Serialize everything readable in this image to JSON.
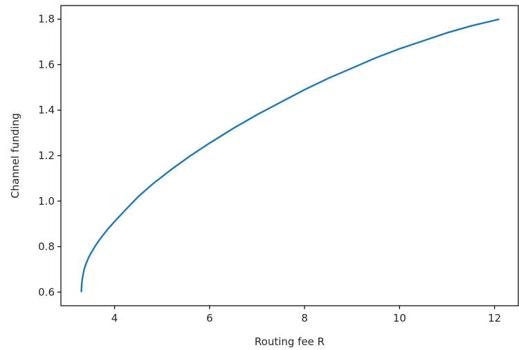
{
  "chart_data": {
    "type": "line",
    "title": "",
    "xlabel": "Routing fee R",
    "ylabel": "Channel funding",
    "xlim": [
      2.87,
      12.5
    ],
    "ylim": [
      0.54,
      1.86
    ],
    "xticks": [
      4,
      6,
      8,
      10,
      12
    ],
    "xtick_labels": [
      "4",
      "6",
      "8",
      "10",
      "12"
    ],
    "yticks": [
      0.6,
      0.8,
      1.0,
      1.2,
      1.4,
      1.6,
      1.8
    ],
    "ytick_labels": [
      "0.6",
      "0.8",
      "1.0",
      "1.2",
      "1.4",
      "1.6",
      "1.8"
    ],
    "grid": false,
    "legend": "none",
    "series": [
      {
        "color": "#1f77b4",
        "x": [
          3.3,
          3.31,
          3.33,
          3.36,
          3.4,
          3.45,
          3.5,
          3.6,
          3.7,
          3.85,
          4.0,
          4.2,
          4.5,
          4.8,
          5.2,
          5.6,
          6.0,
          6.5,
          7.0,
          7.5,
          8.0,
          8.5,
          9.0,
          9.5,
          10.0,
          10.5,
          11.0,
          11.5,
          12.1
        ],
        "y": [
          0.6,
          0.64,
          0.67,
          0.7,
          0.725,
          0.75,
          0.77,
          0.805,
          0.835,
          0.875,
          0.91,
          0.955,
          1.02,
          1.075,
          1.14,
          1.2,
          1.255,
          1.32,
          1.38,
          1.435,
          1.49,
          1.54,
          1.585,
          1.63,
          1.67,
          1.705,
          1.74,
          1.77,
          1.8
        ]
      }
    ]
  }
}
